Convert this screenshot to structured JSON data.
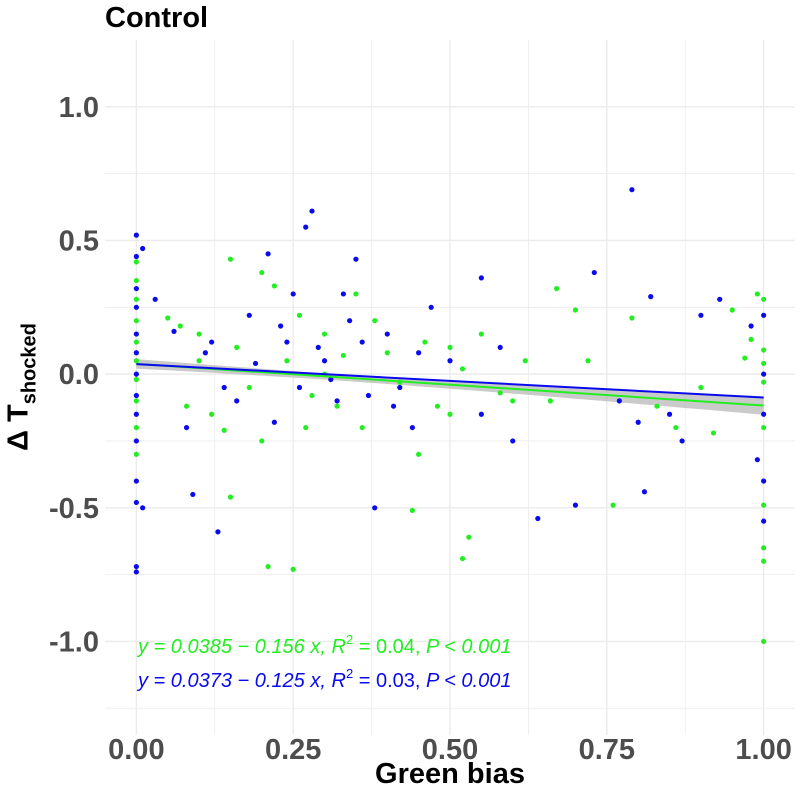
{
  "chart_data": {
    "type": "scatter",
    "title": "Control",
    "xlabel": "Green bias",
    "ylabel": {
      "main": "Δ T",
      "subscript": "shocked"
    },
    "xlim": [
      -0.05,
      1.05
    ],
    "ylim": [
      -1.35,
      1.25
    ],
    "x_ticks": [
      0.0,
      0.25,
      0.5,
      0.75,
      1.0
    ],
    "x_tick_labels": [
      "0.00",
      "0.25",
      "0.50",
      "0.75",
      "1.00"
    ],
    "y_ticks": [
      -1.0,
      -0.5,
      0.0,
      0.5,
      1.0
    ],
    "y_tick_labels": [
      "-1.0",
      "-0.5",
      "0.0",
      "0.5",
      "1.0"
    ],
    "grid": true,
    "legend": "none",
    "colors": {
      "green": "#22ee22",
      "blue": "#0a0aee",
      "band": "#b3b3b3",
      "grid": "#ebebeb"
    },
    "series": [
      {
        "color": "green",
        "points": [
          [
            0.0,
            0.42
          ],
          [
            0.0,
            0.35
          ],
          [
            0.0,
            0.28
          ],
          [
            0.0,
            0.2
          ],
          [
            0.0,
            0.12
          ],
          [
            0.0,
            0.05
          ],
          [
            0.0,
            -0.02
          ],
          [
            0.0,
            -0.1
          ],
          [
            0.0,
            -0.2
          ],
          [
            0.0,
            -0.3
          ],
          [
            0.05,
            0.21
          ],
          [
            0.07,
            0.18
          ],
          [
            0.1,
            0.15
          ],
          [
            0.08,
            -0.12
          ],
          [
            0.12,
            -0.15
          ],
          [
            0.15,
            0.43
          ],
          [
            0.2,
            0.38
          ],
          [
            0.16,
            0.1
          ],
          [
            0.18,
            -0.05
          ],
          [
            0.14,
            -0.21
          ],
          [
            0.22,
            0.33
          ],
          [
            0.26,
            0.22
          ],
          [
            0.3,
            0.15
          ],
          [
            0.24,
            0.05
          ],
          [
            0.28,
            -0.08
          ],
          [
            0.32,
            -0.12
          ],
          [
            0.2,
            -0.25
          ],
          [
            0.36,
            -0.2
          ],
          [
            0.4,
            0.08
          ],
          [
            0.42,
            -0.03
          ],
          [
            0.38,
            0.2
          ],
          [
            0.46,
            0.12
          ],
          [
            0.5,
            0.1
          ],
          [
            0.48,
            -0.12
          ],
          [
            0.52,
            0.02
          ],
          [
            0.55,
            0.15
          ],
          [
            0.58,
            -0.07
          ],
          [
            0.6,
            -0.1
          ],
          [
            0.62,
            0.05
          ],
          [
            0.45,
            -0.3
          ],
          [
            0.5,
            -0.15
          ],
          [
            0.35,
            0.3
          ],
          [
            0.1,
            0.05
          ],
          [
            0.3,
            0.0
          ],
          [
            0.27,
            -0.2
          ],
          [
            0.33,
            0.07
          ],
          [
            0.21,
            -0.72
          ],
          [
            0.25,
            -0.73
          ],
          [
            0.52,
            -0.69
          ],
          [
            0.53,
            -0.61
          ],
          [
            0.15,
            -0.46
          ],
          [
            0.44,
            -0.51
          ],
          [
            0.67,
            0.32
          ],
          [
            0.66,
            -0.1
          ],
          [
            0.7,
            0.24
          ],
          [
            0.72,
            0.05
          ],
          [
            0.76,
            -0.49
          ],
          [
            0.79,
            0.21
          ],
          [
            0.83,
            -0.12
          ],
          [
            0.86,
            -0.2
          ],
          [
            0.92,
            -0.22
          ],
          [
            0.95,
            0.24
          ],
          [
            0.97,
            0.06
          ],
          [
            0.99,
            0.3
          ],
          [
            1.0,
            0.28
          ],
          [
            1.0,
            0.09
          ],
          [
            1.0,
            0.04
          ],
          [
            1.0,
            -0.03
          ],
          [
            1.0,
            -0.2
          ],
          [
            1.0,
            -0.49
          ],
          [
            1.0,
            -0.65
          ],
          [
            1.0,
            -0.7
          ],
          [
            1.0,
            -1.0
          ],
          [
            0.98,
            0.13
          ],
          [
            0.9,
            -0.05
          ]
        ]
      },
      {
        "color": "blue",
        "points": [
          [
            0.0,
            0.52
          ],
          [
            0.0,
            0.44
          ],
          [
            0.0,
            0.32
          ],
          [
            0.0,
            0.25
          ],
          [
            0.0,
            0.15
          ],
          [
            0.0,
            0.08
          ],
          [
            0.0,
            0.0
          ],
          [
            0.0,
            -0.08
          ],
          [
            0.0,
            -0.15
          ],
          [
            0.0,
            -0.25
          ],
          [
            0.0,
            -0.4
          ],
          [
            0.0,
            -0.48
          ],
          [
            0.0,
            -0.72
          ],
          [
            0.0,
            -0.74
          ],
          [
            0.01,
            -0.5
          ],
          [
            0.01,
            0.47
          ],
          [
            0.03,
            0.28
          ],
          [
            0.06,
            0.16
          ],
          [
            0.08,
            -0.2
          ],
          [
            0.09,
            -0.45
          ],
          [
            0.12,
            0.12
          ],
          [
            0.13,
            -0.59
          ],
          [
            0.14,
            -0.05
          ],
          [
            0.18,
            0.22
          ],
          [
            0.21,
            0.45
          ],
          [
            0.25,
            0.3
          ],
          [
            0.28,
            0.61
          ],
          [
            0.27,
            0.55
          ],
          [
            0.23,
            0.18
          ],
          [
            0.3,
            0.05
          ],
          [
            0.22,
            -0.18
          ],
          [
            0.32,
            -0.1
          ],
          [
            0.35,
            0.43
          ],
          [
            0.34,
            0.2
          ],
          [
            0.37,
            -0.08
          ],
          [
            0.38,
            -0.5
          ],
          [
            0.4,
            0.15
          ],
          [
            0.42,
            -0.05
          ],
          [
            0.44,
            -0.2
          ],
          [
            0.47,
            0.25
          ],
          [
            0.5,
            0.05
          ],
          [
            0.55,
            0.36
          ],
          [
            0.55,
            -0.15
          ],
          [
            0.58,
            0.1
          ],
          [
            0.6,
            -0.25
          ],
          [
            0.64,
            -0.54
          ],
          [
            0.7,
            -0.49
          ],
          [
            0.73,
            0.38
          ],
          [
            0.77,
            -0.1
          ],
          [
            0.79,
            0.69
          ],
          [
            0.8,
            -0.18
          ],
          [
            0.81,
            -0.44
          ],
          [
            0.82,
            0.29
          ],
          [
            0.85,
            -0.15
          ],
          [
            0.87,
            -0.25
          ],
          [
            0.9,
            0.22
          ],
          [
            0.93,
            0.28
          ],
          [
            0.98,
            0.18
          ],
          [
            0.99,
            -0.32
          ],
          [
            1.0,
            0.22
          ],
          [
            1.0,
            0.0
          ],
          [
            1.0,
            -0.15
          ],
          [
            1.0,
            -0.4
          ],
          [
            1.0,
            -0.55
          ],
          [
            0.26,
            -0.05
          ],
          [
            0.29,
            0.1
          ],
          [
            0.31,
            -0.02
          ],
          [
            0.19,
            0.04
          ],
          [
            0.16,
            -0.1
          ],
          [
            0.11,
            0.08
          ],
          [
            0.36,
            0.12
          ],
          [
            0.41,
            -0.12
          ],
          [
            0.45,
            0.08
          ],
          [
            0.33,
            0.3
          ],
          [
            0.24,
            0.12
          ]
        ]
      }
    ],
    "fit_lines": [
      {
        "color": "green",
        "intercept": 0.0385,
        "slope": -0.156,
        "x_range": [
          0.0,
          1.0
        ]
      },
      {
        "color": "blue",
        "intercept": 0.0373,
        "slope": -0.125,
        "x_range": [
          0.0,
          1.0
        ]
      }
    ],
    "annotations": {
      "green": {
        "eq": "y = 0.0385 − 0.156 x,",
        "r2_label": "R",
        "r2_sup": "2",
        "r2_value": " = 0.04,",
        "p": "P < 0.001"
      },
      "blue": {
        "eq": "y = 0.0373 − 0.125 x,",
        "r2_label": "R",
        "r2_sup": "2",
        "r2_value": " = 0.03,",
        "p": "P < 0.001"
      }
    }
  }
}
